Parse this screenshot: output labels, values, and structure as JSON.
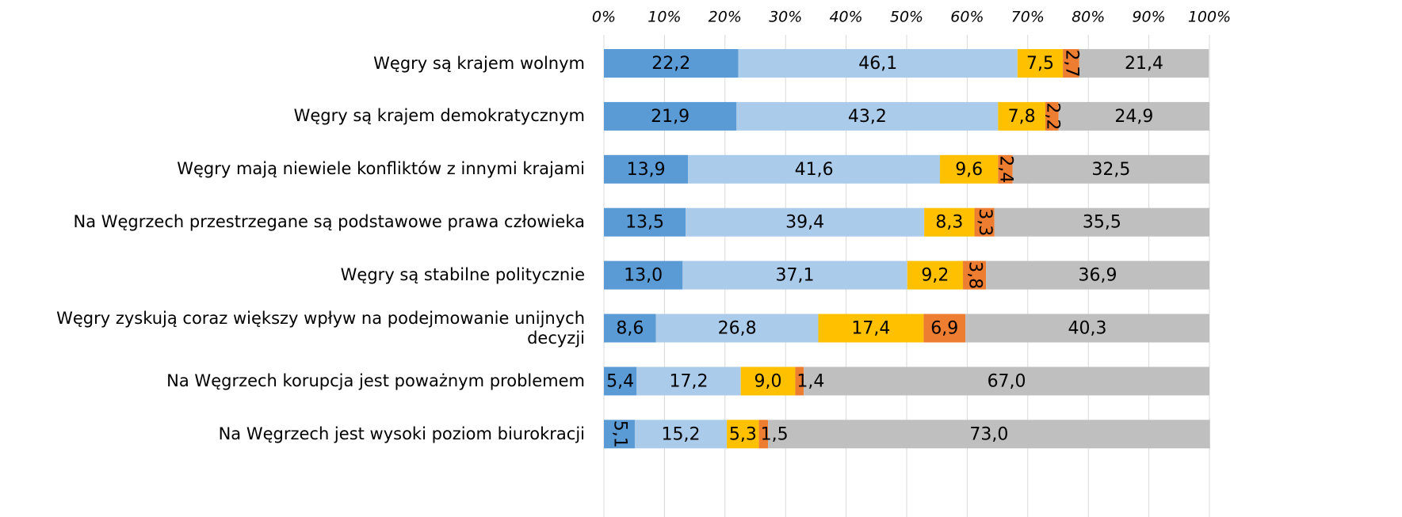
{
  "chart_data": {
    "type": "stacked-barh",
    "categories": [
      "Węgry są krajem wolnym",
      "Węgry są krajem demokratycznym",
      "Węgry mają niewiele konfliktów z innymi krajami",
      "Na Węgrzech przestrzegane są podstawowe prawa człowieka",
      "Węgry są stabilne politycznie",
      "Węgry zyskują coraz większy wpływ na podejmowanie unijnych decyzji",
      "Na Węgrzech korupcja jest poważnym problemem",
      "Na Węgrzech jest wysoki poziom biurokracji"
    ],
    "series": [
      {
        "color": "#5b9bd5",
        "values": [
          22.2,
          21.9,
          13.9,
          13.5,
          13.0,
          8.6,
          5.4,
          5.1
        ],
        "value_labels": [
          "22,2",
          "21,9",
          "13,9",
          "13,5",
          "13,0",
          "8,6",
          "5,4",
          "5,1"
        ]
      },
      {
        "color": "#abcbea",
        "values": [
          46.1,
          43.2,
          41.6,
          39.4,
          37.1,
          26.8,
          17.2,
          15.2
        ],
        "value_labels": [
          "46,1",
          "43,2",
          "41,6",
          "39,4",
          "37,1",
          "26,8",
          "17,2",
          "15,2"
        ]
      },
      {
        "color": "#ffc000",
        "values": [
          7.5,
          7.8,
          9.6,
          8.3,
          9.2,
          17.4,
          9.0,
          5.3
        ],
        "value_labels": [
          "7,5",
          "7,8",
          "9,6",
          "8,3",
          "9,2",
          "17,4",
          "9,0",
          "5,3"
        ]
      },
      {
        "color": "#ed7d31",
        "values": [
          2.7,
          2.2,
          2.4,
          3.3,
          3.8,
          6.9,
          1.4,
          1.5
        ],
        "value_labels": [
          "2,7",
          "2,2",
          "2,4",
          "3,3",
          "3,8",
          "6,9",
          "1,4",
          "1,5"
        ]
      },
      {
        "color": "#bfbfbf",
        "values": [
          21.4,
          24.9,
          32.5,
          35.5,
          36.9,
          40.3,
          67.0,
          73.0
        ],
        "value_labels": [
          "21,4",
          "24,9",
          "32,5",
          "35,5",
          "36,9",
          "40,3",
          "67,0",
          "73,0"
        ]
      }
    ],
    "xlim": [
      0,
      100
    ],
    "xticks": [
      {
        "value": 0,
        "label": "0%"
      },
      {
        "value": 10,
        "label": "10%"
      },
      {
        "value": 20,
        "label": "20%"
      },
      {
        "value": 30,
        "label": "30%"
      },
      {
        "value": 40,
        "label": "40%"
      },
      {
        "value": 50,
        "label": "50%"
      },
      {
        "value": 60,
        "label": "60%"
      },
      {
        "value": 70,
        "label": "70%"
      },
      {
        "value": 80,
        "label": "80%"
      },
      {
        "value": 90,
        "label": "90%"
      },
      {
        "value": 100,
        "label": "100%"
      }
    ],
    "grid": true
  }
}
